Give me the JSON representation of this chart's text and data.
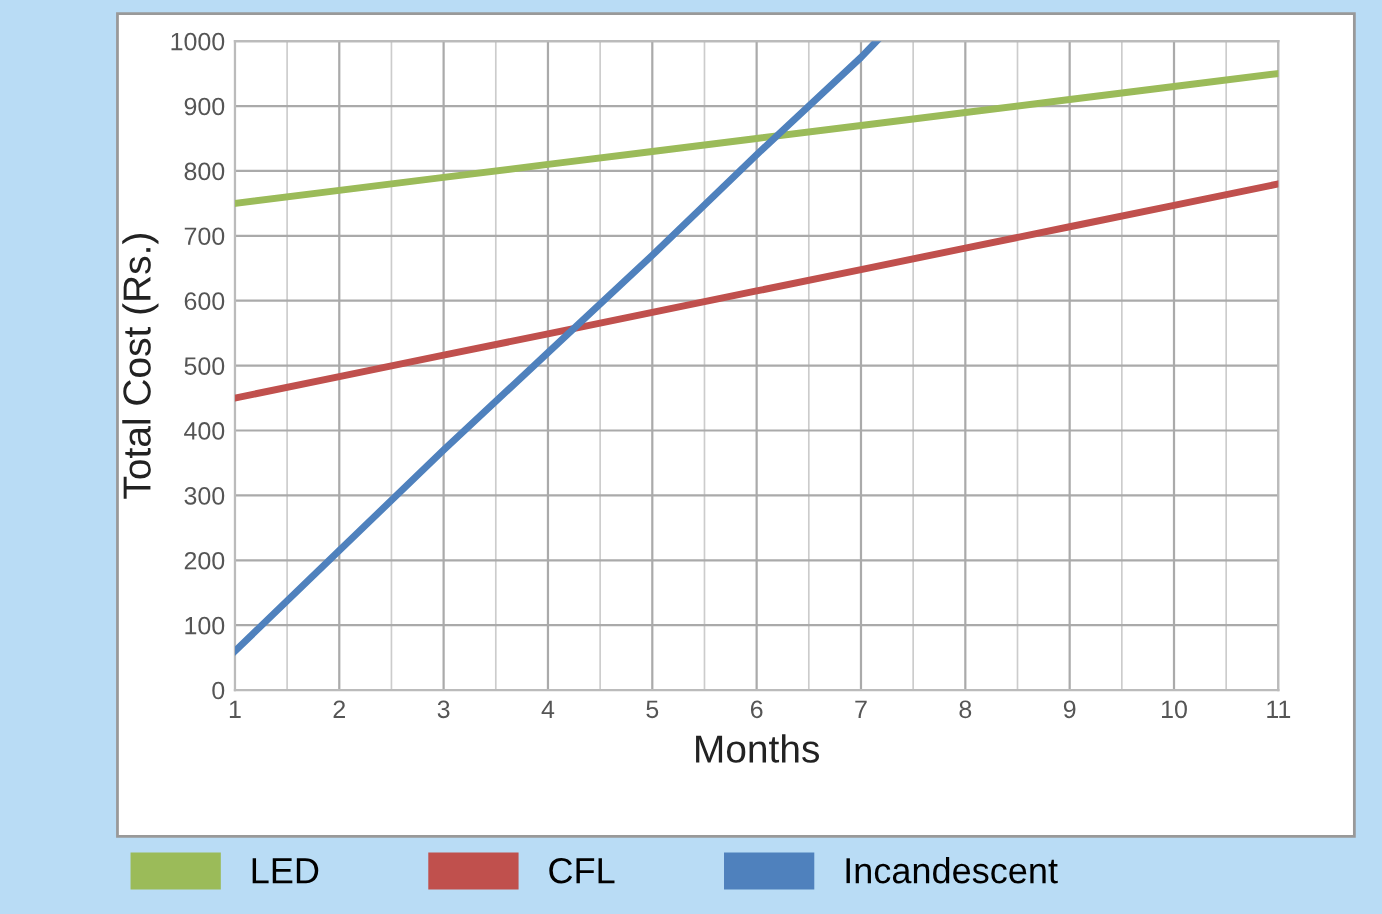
{
  "chart_data": {
    "type": "line",
    "xlabel": "Months",
    "ylabel": "Total Cost (Rs.)",
    "x": [
      1,
      2,
      3,
      4,
      5,
      6,
      7,
      8,
      9,
      10,
      11
    ],
    "series": [
      {
        "name": "LED",
        "color": "#9bbb59",
        "values": [
          750,
          770,
          790,
          810,
          830,
          850,
          870,
          890,
          910,
          930,
          950
        ]
      },
      {
        "name": "CFL",
        "color": "#c0504d",
        "values": [
          450,
          483,
          516,
          549,
          582,
          615,
          648,
          681,
          714,
          747,
          780
        ]
      },
      {
        "name": "Incandescent",
        "color": "#4f81bd",
        "x": [
          1,
          2,
          3,
          4,
          5,
          6,
          7,
          7.15
        ],
        "values": [
          60,
          215,
          370,
          520,
          670,
          825,
          975,
          1000
        ]
      }
    ],
    "xlim": [
      1,
      11
    ],
    "xticks": [
      1,
      2,
      3,
      4,
      5,
      6,
      7,
      8,
      9,
      10,
      11
    ],
    "ylim": [
      0,
      1000
    ],
    "yticks": [
      0,
      100,
      200,
      300,
      400,
      500,
      600,
      700,
      800,
      900,
      1000
    ],
    "grid": true,
    "legend": "bottom",
    "marker": "none",
    "line_style": "solid"
  }
}
